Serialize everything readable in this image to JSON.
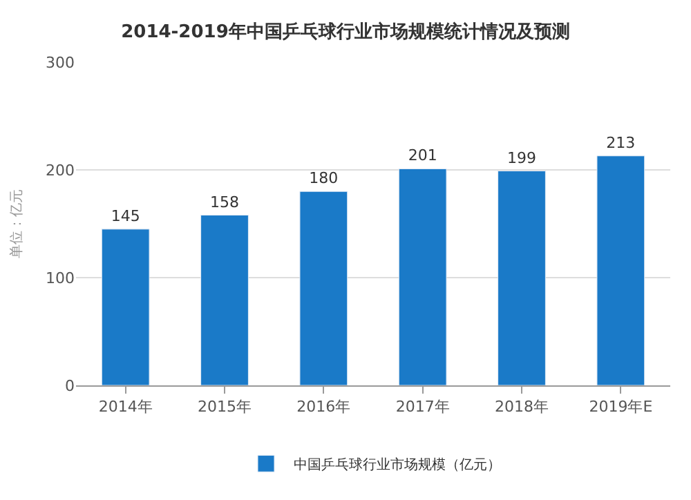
{
  "chart_data": {
    "type": "bar",
    "title": "2014-2019年中国乒乓球行业市场规模统计情况及预测",
    "ylabel": "单位：亿元",
    "categories": [
      "2014年",
      "2015年",
      "2016年",
      "2017年",
      "2018年",
      "2019年E"
    ],
    "series": [
      {
        "name": "中国乒乓球行业市场规模（亿元）",
        "color": "#1a7ac8",
        "values": [
          145,
          158,
          180,
          201,
          199,
          213
        ]
      }
    ],
    "ylim": [
      0,
      300
    ],
    "yticks": [
      0,
      100,
      200,
      300
    ],
    "grid": "y",
    "legend": "bottom",
    "data_labels": true
  }
}
